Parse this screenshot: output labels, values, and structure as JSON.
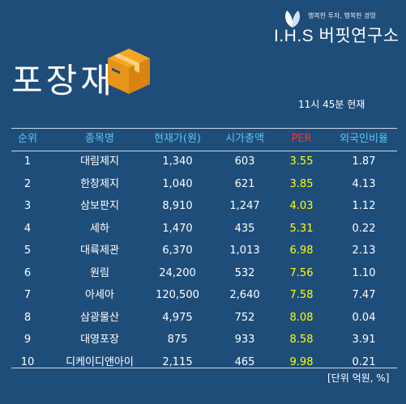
{
  "header": {
    "slogan": "행복한 투자, 행복한 경영",
    "brand": "I.H.S 버핏연구소",
    "title": "포장재",
    "timestamp": "11시 45분 현재"
  },
  "table": {
    "columns": [
      "순위",
      "종목명",
      "현재가(원)",
      "시가총액",
      "PER",
      "외국인비율"
    ],
    "rows": [
      [
        "1",
        "대림제지",
        "1,340",
        "603",
        "3.55",
        "1.87"
      ],
      [
        "2",
        "한창제지",
        "1,040",
        "621",
        "3.85",
        "4.13"
      ],
      [
        "3",
        "삼보판지",
        "8,910",
        "1,247",
        "4.03",
        "1.12"
      ],
      [
        "4",
        "세하",
        "1,470",
        "435",
        "5.31",
        "0.22"
      ],
      [
        "5",
        "대륙제관",
        "6,370",
        "1,013",
        "6.98",
        "2.13"
      ],
      [
        "6",
        "원림",
        "24,200",
        "532",
        "7.56",
        "1.10"
      ],
      [
        "7",
        "아세아",
        "120,500",
        "2,640",
        "7.58",
        "7.47"
      ],
      [
        "8",
        "삼광물산",
        "4,975",
        "752",
        "8.08",
        "0.04"
      ],
      [
        "9",
        "대영포장",
        "875",
        "933",
        "8.58",
        "3.91"
      ],
      [
        "10",
        "디케이디앤아이",
        "2,115",
        "465",
        "9.98",
        "0.21"
      ]
    ]
  },
  "footer": {
    "unit": "[단위 억원, %]"
  }
}
